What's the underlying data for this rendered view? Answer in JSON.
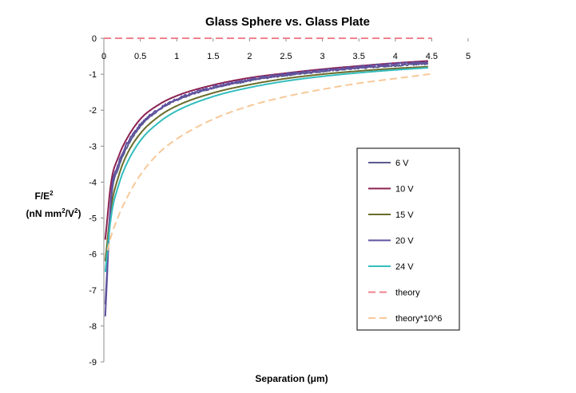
{
  "chart_data": {
    "type": "line",
    "title": "Glass Sphere vs. Glass Plate",
    "xlabel": "Separation (μm)",
    "ylabel_line1": "F/E",
    "ylabel_line1_sup": "2",
    "ylabel_line2_pre": "(nN mm",
    "ylabel_line2_sup1": "2",
    "ylabel_line2_mid": "/V",
    "ylabel_line2_sup2": "2",
    "ylabel_line2_post": ")",
    "xlim": [
      0,
      5
    ],
    "ylim": [
      -9,
      0
    ],
    "xticks": [
      "0",
      "0.5",
      "1",
      "1.5",
      "2",
      "2.5",
      "3",
      "3.5",
      "4",
      "4.5",
      "5"
    ],
    "yticks": [
      "0",
      "-1",
      "-2",
      "-3",
      "-4",
      "-5",
      "-6",
      "-7",
      "-8",
      "-9"
    ],
    "series": [
      {
        "name": "6 V",
        "color": "#5b5b8f",
        "dashed": false,
        "noise": 0.02,
        "x": [
          0.02,
          0.1,
          0.2,
          0.3,
          0.5,
          0.75,
          1.0,
          1.5,
          2.0,
          2.5,
          3.0,
          3.5,
          4.0,
          4.45
        ],
        "y": [
          -7.4,
          -4.5,
          -3.6,
          -3.1,
          -2.45,
          -2.0,
          -1.72,
          -1.38,
          -1.18,
          -1.03,
          -0.92,
          -0.83,
          -0.76,
          -0.7
        ]
      },
      {
        "name": "10 V",
        "color": "#8b2252",
        "dashed": false,
        "noise": 0.0,
        "x": [
          0.02,
          0.1,
          0.2,
          0.3,
          0.5,
          0.75,
          1.0,
          1.5,
          2.0,
          2.5,
          3.0,
          3.5,
          4.0,
          4.45
        ],
        "y": [
          -5.6,
          -4.0,
          -3.3,
          -2.85,
          -2.25,
          -1.85,
          -1.6,
          -1.3,
          -1.1,
          -0.97,
          -0.86,
          -0.77,
          -0.69,
          -0.63
        ]
      },
      {
        "name": "15 V",
        "color": "#6b6b2a",
        "dashed": false,
        "noise": 0.0,
        "x": [
          0.02,
          0.1,
          0.2,
          0.3,
          0.5,
          0.75,
          1.0,
          1.5,
          2.0,
          2.5,
          3.0,
          3.5,
          4.0,
          4.45
        ],
        "y": [
          -6.2,
          -4.7,
          -3.85,
          -3.3,
          -2.65,
          -2.18,
          -1.88,
          -1.52,
          -1.29,
          -1.12,
          -1.0,
          -0.91,
          -0.84,
          -0.79
        ]
      },
      {
        "name": "20 V",
        "color": "#6050a0",
        "dashed": false,
        "noise": 0.035,
        "x": [
          0.02,
          0.1,
          0.2,
          0.3,
          0.5,
          0.75,
          1.0,
          1.5,
          2.0,
          2.5,
          3.0,
          3.5,
          4.0,
          4.45
        ],
        "y": [
          -7.7,
          -4.4,
          -3.5,
          -3.0,
          -2.4,
          -1.98,
          -1.7,
          -1.36,
          -1.15,
          -1.0,
          -0.9,
          -0.8,
          -0.72,
          -0.66
        ]
      },
      {
        "name": "24 V",
        "color": "#33bdbd",
        "dashed": false,
        "noise": 0.0,
        "x": [
          0.02,
          0.1,
          0.2,
          0.3,
          0.5,
          0.75,
          1.0,
          1.5,
          2.0,
          2.5,
          3.0,
          3.5,
          4.0,
          4.45
        ],
        "y": [
          -6.5,
          -4.95,
          -4.1,
          -3.55,
          -2.85,
          -2.35,
          -2.02,
          -1.62,
          -1.37,
          -1.19,
          -1.06,
          -0.96,
          -0.88,
          -0.82
        ]
      },
      {
        "name": "theory",
        "color": "#f0828c",
        "dashed": true,
        "noise": 0.0,
        "x": [
          0.0,
          4.5
        ],
        "y": [
          0.0,
          0.0
        ]
      },
      {
        "name": "theory*10^6",
        "color": "#f8c898",
        "dashed": true,
        "noise": 0.0,
        "x": [
          0.05,
          0.1,
          0.2,
          0.3,
          0.5,
          0.75,
          1.0,
          1.5,
          2.0,
          2.5,
          3.0,
          3.5,
          4.0,
          4.5
        ],
        "y": [
          -5.9,
          -5.5,
          -4.95,
          -4.5,
          -3.8,
          -3.2,
          -2.8,
          -2.25,
          -1.88,
          -1.62,
          -1.42,
          -1.25,
          -1.12,
          -0.99
        ]
      }
    ],
    "legend_position": "right"
  }
}
